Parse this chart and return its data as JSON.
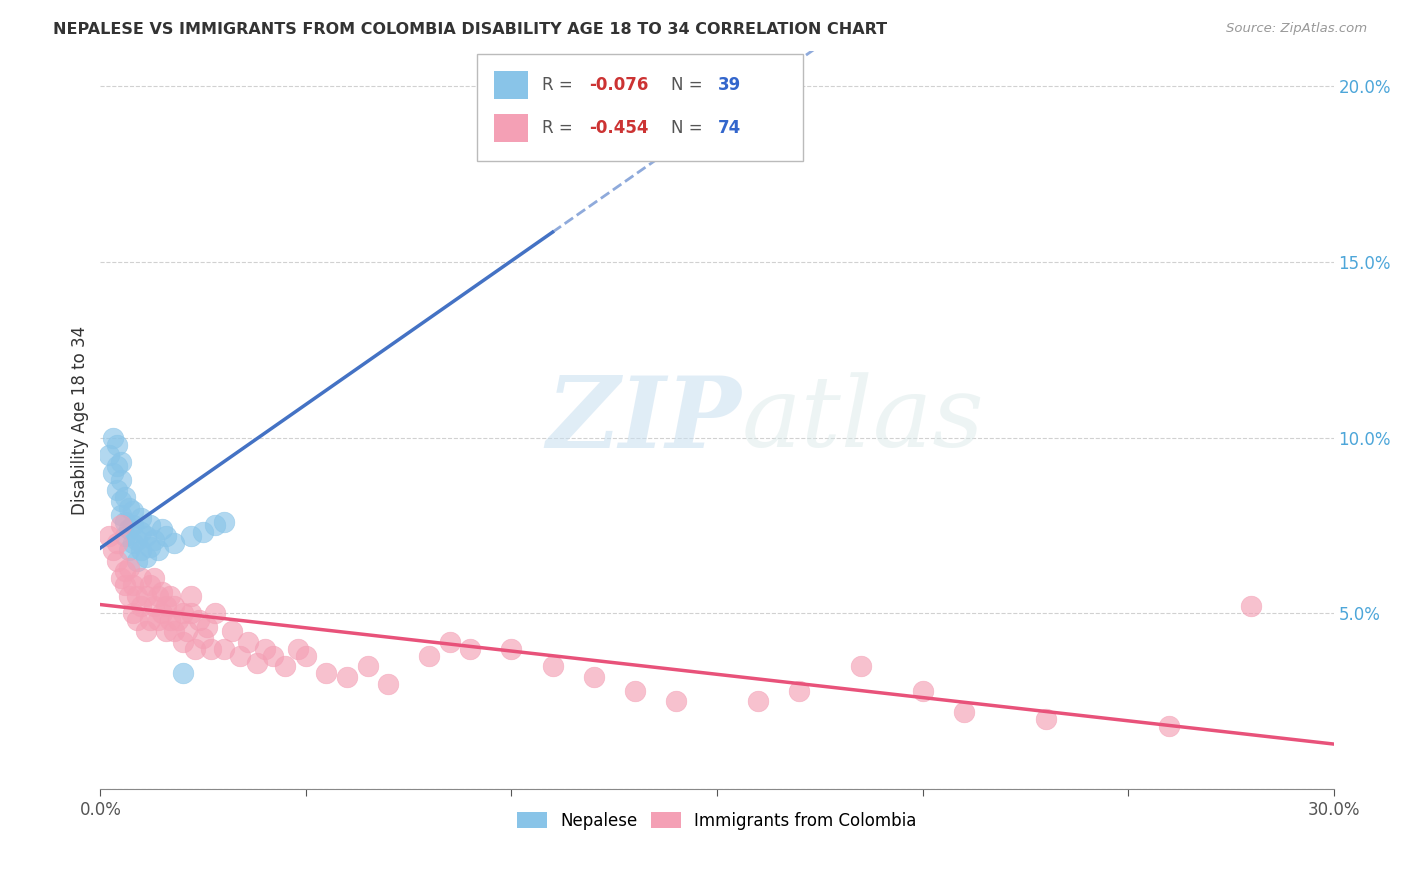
{
  "title": "NEPALESE VS IMMIGRANTS FROM COLOMBIA DISABILITY AGE 18 TO 34 CORRELATION CHART",
  "source": "Source: ZipAtlas.com",
  "ylabel": "Disability Age 18 to 34",
  "xlim": [
    0.0,
    0.3
  ],
  "ylim": [
    0.0,
    0.21
  ],
  "nepalese_color": "#89c4e8",
  "colombia_color": "#f4a0b5",
  "trendline1_color": "#4472c4",
  "trendline2_color": "#e8527a",
  "watermark_zip": "ZIP",
  "watermark_atlas": "atlas",
  "nepalese_x": [
    0.002,
    0.003,
    0.003,
    0.004,
    0.004,
    0.004,
    0.005,
    0.005,
    0.005,
    0.005,
    0.006,
    0.006,
    0.006,
    0.007,
    0.007,
    0.007,
    0.008,
    0.008,
    0.008,
    0.009,
    0.009,
    0.01,
    0.01,
    0.01,
    0.011,
    0.011,
    0.012,
    0.012,
    0.013,
    0.014,
    0.015,
    0.016,
    0.018,
    0.02,
    0.022,
    0.025,
    0.028,
    0.03,
    0.102
  ],
  "nepalese_y": [
    0.095,
    0.09,
    0.1,
    0.085,
    0.092,
    0.098,
    0.078,
    0.082,
    0.088,
    0.093,
    0.072,
    0.076,
    0.083,
    0.068,
    0.074,
    0.08,
    0.07,
    0.075,
    0.079,
    0.065,
    0.071,
    0.068,
    0.073,
    0.077,
    0.066,
    0.072,
    0.069,
    0.075,
    0.071,
    0.068,
    0.074,
    0.072,
    0.07,
    0.033,
    0.072,
    0.073,
    0.075,
    0.076,
    0.185
  ],
  "colombia_x": [
    0.002,
    0.003,
    0.004,
    0.004,
    0.005,
    0.005,
    0.006,
    0.006,
    0.007,
    0.007,
    0.008,
    0.008,
    0.009,
    0.009,
    0.01,
    0.01,
    0.011,
    0.011,
    0.012,
    0.012,
    0.013,
    0.013,
    0.014,
    0.014,
    0.015,
    0.015,
    0.016,
    0.016,
    0.017,
    0.017,
    0.018,
    0.018,
    0.019,
    0.02,
    0.02,
    0.021,
    0.022,
    0.022,
    0.023,
    0.024,
    0.025,
    0.026,
    0.027,
    0.028,
    0.03,
    0.032,
    0.034,
    0.036,
    0.038,
    0.04,
    0.042,
    0.045,
    0.048,
    0.05,
    0.055,
    0.06,
    0.065,
    0.07,
    0.08,
    0.085,
    0.09,
    0.1,
    0.11,
    0.12,
    0.13,
    0.14,
    0.16,
    0.17,
    0.185,
    0.2,
    0.21,
    0.23,
    0.26,
    0.28
  ],
  "colombia_y": [
    0.072,
    0.068,
    0.065,
    0.07,
    0.06,
    0.075,
    0.058,
    0.062,
    0.055,
    0.063,
    0.05,
    0.058,
    0.048,
    0.055,
    0.052,
    0.06,
    0.045,
    0.055,
    0.048,
    0.058,
    0.052,
    0.06,
    0.048,
    0.055,
    0.05,
    0.056,
    0.045,
    0.052,
    0.048,
    0.055,
    0.045,
    0.052,
    0.048,
    0.042,
    0.05,
    0.045,
    0.05,
    0.055,
    0.04,
    0.048,
    0.043,
    0.046,
    0.04,
    0.05,
    0.04,
    0.045,
    0.038,
    0.042,
    0.036,
    0.04,
    0.038,
    0.035,
    0.04,
    0.038,
    0.033,
    0.032,
    0.035,
    0.03,
    0.038,
    0.042,
    0.04,
    0.04,
    0.035,
    0.032,
    0.028,
    0.025,
    0.025,
    0.028,
    0.035,
    0.028,
    0.022,
    0.02,
    0.018,
    0.052
  ]
}
